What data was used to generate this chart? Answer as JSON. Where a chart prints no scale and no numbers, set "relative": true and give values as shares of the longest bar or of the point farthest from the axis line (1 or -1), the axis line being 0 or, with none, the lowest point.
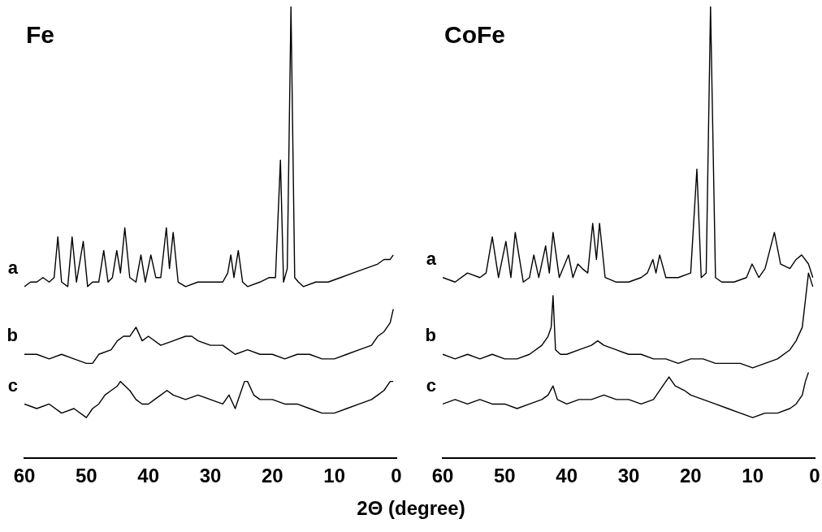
{
  "chart_data": [
    {
      "type": "line",
      "title": "Fe",
      "xlabel": "2Θ (degree)",
      "relative": true,
      "xlim": [
        60,
        0
      ],
      "xticks": [
        60,
        50,
        40,
        30,
        20,
        10,
        0
      ],
      "series": [
        {
          "name": "a",
          "color": "#000000",
          "x": [
            60,
            59,
            58,
            57,
            56,
            55.2,
            54.6,
            54,
            53,
            52.3,
            51.6,
            50.5,
            49.8,
            49,
            48,
            47.2,
            46.5,
            45.8,
            45.1,
            44.5,
            43.8,
            43,
            42,
            41.2,
            40.5,
            39.6,
            38.8,
            38,
            37.1,
            36.6,
            36,
            35.2,
            34,
            32,
            30,
            28,
            27.2,
            26.7,
            26.2,
            25.5,
            24.8,
            24,
            22,
            20.5,
            19.5,
            18.7,
            18.2,
            17.6,
            17,
            16.4,
            15.8,
            15,
            13,
            11,
            9,
            7,
            5,
            3,
            2,
            1,
            0.5
          ],
          "values": [
            0.38,
            0.39,
            0.39,
            0.4,
            0.39,
            0.4,
            0.49,
            0.39,
            0.38,
            0.49,
            0.39,
            0.48,
            0.38,
            0.39,
            0.39,
            0.46,
            0.39,
            0.4,
            0.46,
            0.41,
            0.51,
            0.4,
            0.39,
            0.45,
            0.39,
            0.45,
            0.4,
            0.4,
            0.51,
            0.42,
            0.5,
            0.39,
            0.38,
            0.39,
            0.39,
            0.39,
            0.41,
            0.45,
            0.4,
            0.46,
            0.39,
            0.38,
            0.39,
            0.4,
            0.4,
            0.66,
            0.39,
            0.42,
            1.0,
            0.4,
            0.39,
            0.38,
            0.39,
            0.39,
            0.4,
            0.41,
            0.42,
            0.43,
            0.44,
            0.44,
            0.45
          ]
        },
        {
          "name": "b",
          "color": "#000000",
          "x": [
            60,
            58,
            56,
            54,
            52,
            50,
            49,
            48,
            46,
            45,
            44,
            43,
            42,
            41,
            40,
            38,
            36,
            34,
            33,
            32,
            30,
            28,
            26,
            24,
            22,
            20,
            18,
            16,
            14,
            12,
            10,
            8,
            6,
            4,
            3,
            2,
            1,
            0.5
          ],
          "values": [
            0.23,
            0.23,
            0.22,
            0.23,
            0.22,
            0.21,
            0.21,
            0.23,
            0.24,
            0.26,
            0.27,
            0.27,
            0.29,
            0.26,
            0.27,
            0.25,
            0.26,
            0.27,
            0.27,
            0.26,
            0.25,
            0.25,
            0.23,
            0.24,
            0.23,
            0.23,
            0.22,
            0.23,
            0.23,
            0.22,
            0.22,
            0.23,
            0.24,
            0.25,
            0.27,
            0.28,
            0.3,
            0.33
          ]
        },
        {
          "name": "c",
          "color": "#000000",
          "x": [
            60,
            58,
            56,
            54,
            52,
            50,
            49,
            48,
            47,
            46,
            45,
            44.5,
            43,
            42,
            41,
            40,
            39,
            38,
            37,
            36,
            34,
            32,
            30,
            28,
            27,
            26,
            25,
            24.5,
            24,
            23,
            22,
            20,
            18,
            16,
            14,
            12,
            10,
            8,
            6,
            4,
            3,
            2,
            1,
            0.5
          ],
          "values": [
            0.12,
            0.11,
            0.12,
            0.1,
            0.11,
            0.09,
            0.11,
            0.12,
            0.14,
            0.15,
            0.16,
            0.17,
            0.15,
            0.13,
            0.12,
            0.12,
            0.13,
            0.14,
            0.15,
            0.14,
            0.13,
            0.14,
            0.13,
            0.12,
            0.14,
            0.11,
            0.15,
            0.17,
            0.17,
            0.14,
            0.13,
            0.13,
            0.12,
            0.12,
            0.11,
            0.1,
            0.1,
            0.11,
            0.12,
            0.13,
            0.14,
            0.15,
            0.17,
            0.17
          ]
        }
      ]
    },
    {
      "type": "line",
      "title": "CoFe",
      "relative": true,
      "xlim": [
        60,
        0
      ],
      "xticks": [
        60,
        50,
        40,
        30,
        20,
        10,
        0
      ],
      "series": [
        {
          "name": "a",
          "color": "#000000",
          "x": [
            60,
            58,
            56,
            54,
            53,
            52,
            51,
            49.8,
            49,
            48.3,
            47,
            46,
            45.3,
            44.5,
            43.4,
            42.8,
            42.2,
            41.2,
            39.7,
            39,
            38.2,
            37.5,
            36.6,
            35.8,
            35.2,
            34.7,
            33.8,
            32,
            30,
            28,
            27,
            26.1,
            25.6,
            25,
            24,
            22,
            20,
            19,
            18.3,
            17.5,
            16.8,
            16,
            15,
            13,
            11,
            10.1,
            9,
            8,
            6.5,
            5.5,
            4,
            3,
            2.1,
            1,
            0.3
          ],
          "values": [
            0.4,
            0.39,
            0.41,
            0.4,
            0.41,
            0.49,
            0.4,
            0.48,
            0.4,
            0.5,
            0.39,
            0.4,
            0.45,
            0.4,
            0.47,
            0.41,
            0.5,
            0.4,
            0.45,
            0.4,
            0.43,
            0.42,
            0.41,
            0.52,
            0.44,
            0.52,
            0.4,
            0.39,
            0.39,
            0.4,
            0.41,
            0.44,
            0.41,
            0.45,
            0.4,
            0.4,
            0.41,
            0.64,
            0.4,
            0.41,
            1.0,
            0.4,
            0.39,
            0.39,
            0.4,
            0.43,
            0.4,
            0.42,
            0.5,
            0.43,
            0.42,
            0.44,
            0.45,
            0.43,
            0.4
          ]
        },
        {
          "name": "b",
          "color": "#000000",
          "x": [
            60,
            58,
            56,
            54,
            52,
            50,
            48,
            46,
            44,
            43,
            42.5,
            42.2,
            41.8,
            41,
            40,
            38,
            36,
            35,
            34,
            32,
            30,
            28,
            26,
            24,
            22,
            20,
            18,
            16,
            14,
            12,
            10,
            8,
            6,
            4,
            3,
            2,
            1.5,
            1,
            0.3
          ],
          "values": [
            0.23,
            0.22,
            0.23,
            0.22,
            0.23,
            0.22,
            0.22,
            0.23,
            0.25,
            0.27,
            0.29,
            0.36,
            0.24,
            0.23,
            0.23,
            0.24,
            0.25,
            0.26,
            0.25,
            0.24,
            0.23,
            0.23,
            0.22,
            0.22,
            0.21,
            0.22,
            0.22,
            0.21,
            0.21,
            0.21,
            0.2,
            0.21,
            0.22,
            0.24,
            0.26,
            0.29,
            0.35,
            0.41,
            0.38
          ]
        },
        {
          "name": "c",
          "color": "#000000",
          "x": [
            60,
            58,
            56,
            54,
            52,
            50,
            48,
            46,
            44,
            43,
            42.2,
            41.5,
            40,
            38,
            36,
            34,
            32,
            30,
            28,
            26,
            24.5,
            23.5,
            22.5,
            21,
            20,
            18,
            16,
            14,
            12,
            10,
            8,
            6,
            4,
            3,
            2,
            1.5,
            1
          ],
          "values": [
            0.12,
            0.13,
            0.12,
            0.13,
            0.12,
            0.12,
            0.11,
            0.12,
            0.13,
            0.14,
            0.16,
            0.13,
            0.12,
            0.13,
            0.13,
            0.14,
            0.13,
            0.13,
            0.12,
            0.13,
            0.16,
            0.18,
            0.16,
            0.15,
            0.14,
            0.13,
            0.12,
            0.11,
            0.1,
            0.09,
            0.1,
            0.1,
            0.11,
            0.12,
            0.14,
            0.17,
            0.19
          ]
        }
      ]
    }
  ]
}
